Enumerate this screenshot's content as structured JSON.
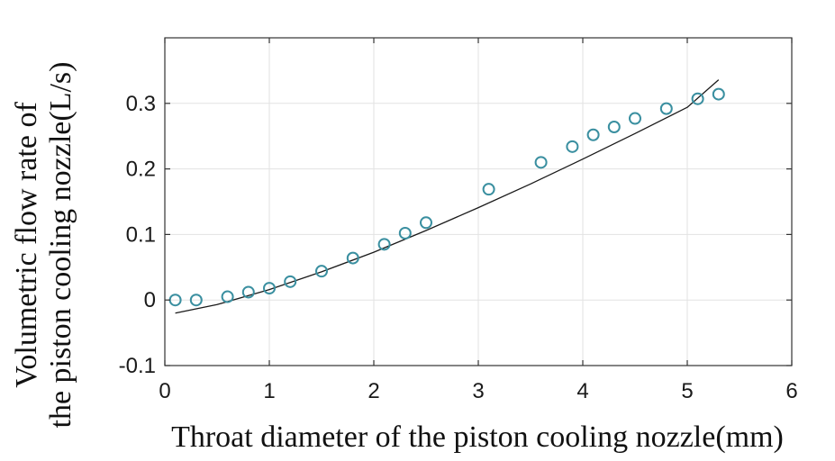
{
  "chart_data": {
    "type": "scatter",
    "xlabel": "Throat diameter of the piston cooling nozzle(mm)",
    "ylabel": [
      "Volumetric flow rate of",
      "the piston cooling nozzle(L/s)"
    ],
    "xlim": [
      0,
      6
    ],
    "ylim": [
      -0.1,
      0.4
    ],
    "xticks": [
      0,
      1,
      2,
      3,
      4,
      5,
      6
    ],
    "yticks": [
      -0.1,
      0,
      0.1,
      0.2,
      0.3
    ],
    "xtick_labels": [
      "0",
      "1",
      "2",
      "3",
      "4",
      "5",
      "6"
    ],
    "ytick_labels": [
      "-0.1",
      "0",
      "0.1",
      "0.2",
      "0.3"
    ],
    "grid": true,
    "series": [
      {
        "kind": "markers",
        "marker": "circle-open",
        "color": "#3a8fa0",
        "x": [
          0.1,
          0.3,
          0.6,
          0.8,
          1.0,
          1.2,
          1.5,
          1.8,
          2.1,
          2.3,
          2.5,
          3.1,
          3.6,
          3.9,
          4.1,
          4.3,
          4.5,
          4.8,
          5.1,
          5.3
        ],
        "y": [
          0.0,
          0.0,
          0.005,
          0.012,
          0.018,
          0.028,
          0.044,
          0.064,
          0.085,
          0.102,
          0.118,
          0.169,
          0.21,
          0.234,
          0.252,
          0.264,
          0.277,
          0.292,
          0.307,
          0.314
        ]
      },
      {
        "kind": "line",
        "color": "#1a1a1a",
        "x": [
          0.1,
          0.5,
          1.0,
          1.5,
          2.0,
          2.5,
          3.0,
          3.5,
          4.0,
          4.5,
          5.0,
          5.3
        ],
        "y": [
          -0.02,
          -0.007,
          0.016,
          0.043,
          0.073,
          0.106,
          0.141,
          0.177,
          0.215,
          0.254,
          0.294,
          0.336
        ]
      }
    ]
  }
}
